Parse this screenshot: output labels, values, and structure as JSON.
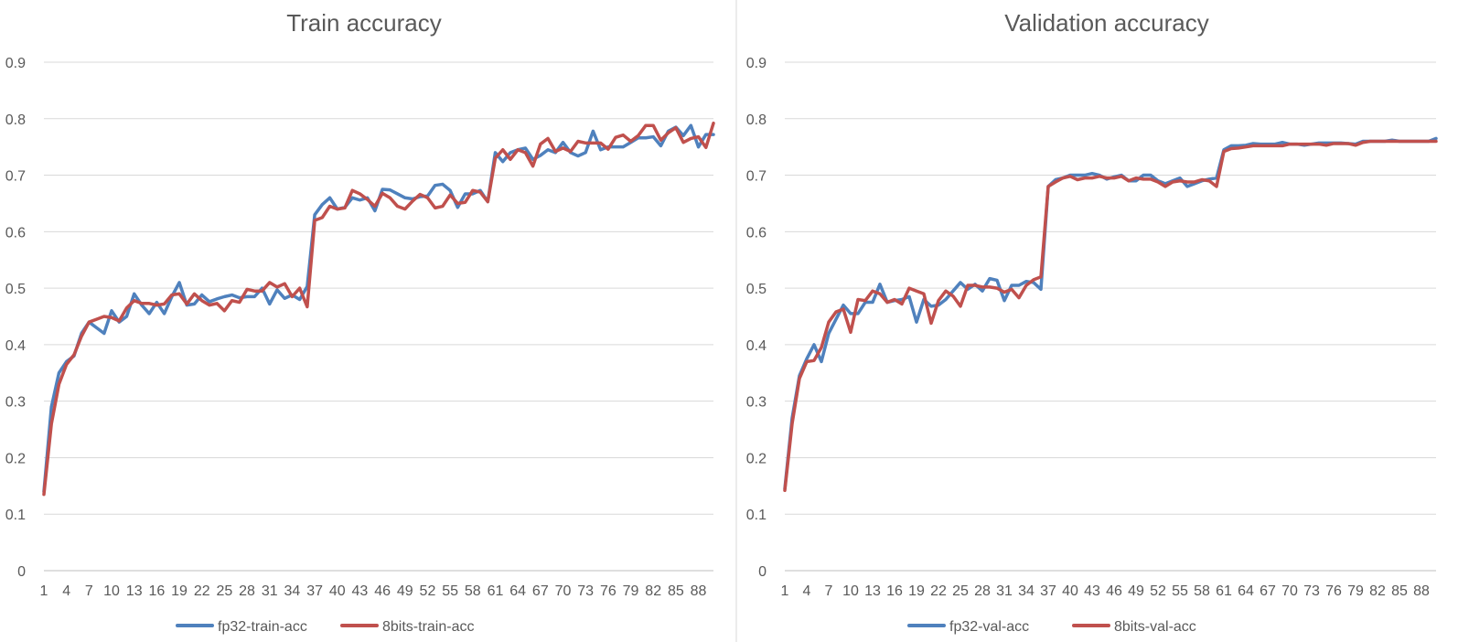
{
  "chart_data": [
    {
      "type": "line",
      "title": "Train accuracy",
      "xlabel": "",
      "ylabel": "",
      "ylim": [
        0,
        0.9
      ],
      "yticks": [
        "0",
        "0.1",
        "0.2",
        "0.3",
        "0.4",
        "0.5",
        "0.6",
        "0.7",
        "0.8",
        "0.9"
      ],
      "xticks": [
        1,
        4,
        7,
        10,
        13,
        16,
        19,
        22,
        25,
        28,
        31,
        34,
        37,
        40,
        43,
        46,
        49,
        52,
        55,
        58,
        61,
        64,
        67,
        70,
        73,
        76,
        79,
        82,
        85,
        88
      ],
      "x_count": 90,
      "grid": "horizontal",
      "legend_position": "bottom",
      "series": [
        {
          "name": "fp32-train-acc",
          "color": "#4F81BD",
          "values": [
            0.14,
            0.29,
            0.35,
            0.37,
            0.38,
            0.42,
            0.44,
            0.43,
            0.42,
            0.46,
            0.44,
            0.45,
            0.49,
            0.47,
            0.455,
            0.475,
            0.455,
            0.485,
            0.51,
            0.47,
            0.472,
            0.488,
            0.476,
            0.481,
            0.485,
            0.488,
            0.483,
            0.485,
            0.485,
            0.5,
            0.472,
            0.497,
            0.482,
            0.488,
            0.48,
            0.503,
            0.63,
            0.648,
            0.66,
            0.64,
            0.643,
            0.66,
            0.656,
            0.66,
            0.637,
            0.675,
            0.674,
            0.667,
            0.66,
            0.658,
            0.662,
            0.663,
            0.682,
            0.684,
            0.673,
            0.643,
            0.667,
            0.667,
            0.673,
            0.653,
            0.74,
            0.724,
            0.74,
            0.745,
            0.748,
            0.728,
            0.735,
            0.745,
            0.74,
            0.758,
            0.74,
            0.734,
            0.74,
            0.778,
            0.745,
            0.75,
            0.75,
            0.75,
            0.758,
            0.766,
            0.766,
            0.768,
            0.752,
            0.778,
            0.785,
            0.77,
            0.788,
            0.75,
            0.772,
            0.772
          ]
        },
        {
          "name": "8bits-train-acc",
          "color": "#C0504D",
          "values": [
            0.135,
            0.26,
            0.33,
            0.365,
            0.382,
            0.415,
            0.44,
            0.445,
            0.45,
            0.448,
            0.442,
            0.465,
            0.478,
            0.473,
            0.473,
            0.47,
            0.472,
            0.488,
            0.49,
            0.472,
            0.49,
            0.478,
            0.47,
            0.473,
            0.46,
            0.478,
            0.475,
            0.498,
            0.495,
            0.495,
            0.51,
            0.502,
            0.508,
            0.485,
            0.5,
            0.467,
            0.62,
            0.625,
            0.645,
            0.64,
            0.642,
            0.673,
            0.667,
            0.657,
            0.645,
            0.668,
            0.66,
            0.645,
            0.64,
            0.654,
            0.666,
            0.66,
            0.642,
            0.645,
            0.665,
            0.65,
            0.652,
            0.673,
            0.67,
            0.653,
            0.73,
            0.745,
            0.728,
            0.745,
            0.74,
            0.716,
            0.755,
            0.765,
            0.742,
            0.748,
            0.742,
            0.76,
            0.757,
            0.757,
            0.757,
            0.746,
            0.767,
            0.771,
            0.76,
            0.77,
            0.788,
            0.788,
            0.762,
            0.775,
            0.784,
            0.758,
            0.765,
            0.768,
            0.749,
            0.792
          ]
        }
      ]
    },
    {
      "type": "line",
      "title": "Validation accuracy",
      "xlabel": "",
      "ylabel": "",
      "ylim": [
        0,
        0.9
      ],
      "yticks": [
        "0",
        "0.1",
        "0.2",
        "0.3",
        "0.4",
        "0.5",
        "0.6",
        "0.7",
        "0.8",
        "0.9"
      ],
      "xticks": [
        1,
        4,
        7,
        10,
        13,
        16,
        19,
        22,
        25,
        28,
        31,
        34,
        37,
        40,
        43,
        46,
        49,
        52,
        55,
        58,
        61,
        64,
        67,
        70,
        73,
        76,
        79,
        82,
        85,
        88
      ],
      "x_count": 90,
      "grid": "horizontal",
      "legend_position": "bottom",
      "series": [
        {
          "name": "fp32-val-acc",
          "color": "#4F81BD",
          "values": [
            0.145,
            0.27,
            0.345,
            0.375,
            0.4,
            0.37,
            0.42,
            0.445,
            0.47,
            0.455,
            0.455,
            0.475,
            0.475,
            0.507,
            0.475,
            0.478,
            0.48,
            0.485,
            0.44,
            0.48,
            0.468,
            0.47,
            0.48,
            0.495,
            0.51,
            0.498,
            0.507,
            0.495,
            0.517,
            0.514,
            0.478,
            0.505,
            0.505,
            0.512,
            0.51,
            0.498,
            0.68,
            0.692,
            0.695,
            0.7,
            0.7,
            0.7,
            0.703,
            0.7,
            0.693,
            0.697,
            0.7,
            0.69,
            0.69,
            0.7,
            0.7,
            0.69,
            0.685,
            0.69,
            0.695,
            0.68,
            0.685,
            0.69,
            0.693,
            0.695,
            0.745,
            0.752,
            0.752,
            0.753,
            0.756,
            0.755,
            0.755,
            0.755,
            0.758,
            0.755,
            0.755,
            0.753,
            0.755,
            0.757,
            0.757,
            0.757,
            0.757,
            0.756,
            0.755,
            0.76,
            0.76,
            0.76,
            0.76,
            0.762,
            0.76,
            0.76,
            0.76,
            0.76,
            0.76,
            0.765
          ]
        },
        {
          "name": "8bits-val-acc",
          "color": "#C0504D",
          "values": [
            0.142,
            0.26,
            0.34,
            0.37,
            0.372,
            0.395,
            0.44,
            0.458,
            0.463,
            0.422,
            0.48,
            0.478,
            0.495,
            0.49,
            0.475,
            0.48,
            0.472,
            0.5,
            0.495,
            0.49,
            0.438,
            0.478,
            0.495,
            0.486,
            0.468,
            0.505,
            0.505,
            0.502,
            0.502,
            0.5,
            0.493,
            0.498,
            0.483,
            0.505,
            0.515,
            0.52,
            0.68,
            0.688,
            0.695,
            0.698,
            0.692,
            0.695,
            0.695,
            0.698,
            0.695,
            0.695,
            0.698,
            0.69,
            0.695,
            0.693,
            0.693,
            0.688,
            0.68,
            0.688,
            0.69,
            0.688,
            0.688,
            0.692,
            0.69,
            0.68,
            0.742,
            0.747,
            0.748,
            0.75,
            0.752,
            0.752,
            0.752,
            0.752,
            0.752,
            0.755,
            0.755,
            0.755,
            0.755,
            0.755,
            0.753,
            0.756,
            0.756,
            0.756,
            0.753,
            0.758,
            0.76,
            0.76,
            0.76,
            0.76,
            0.76,
            0.76,
            0.76,
            0.76,
            0.76,
            0.76
          ]
        }
      ]
    }
  ]
}
